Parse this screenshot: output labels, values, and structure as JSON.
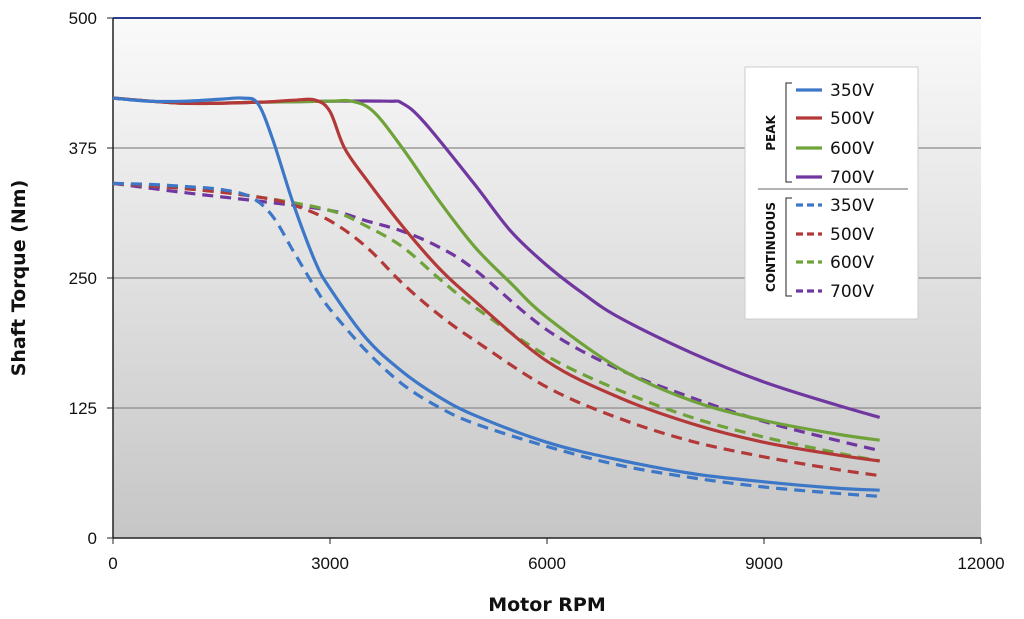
{
  "chart_data": {
    "type": "line",
    "title": "",
    "xlabel": "Motor RPM",
    "ylabel": "Shaft Torque (Nm)",
    "xlim": [
      0,
      12000
    ],
    "ylim": [
      0,
      500
    ],
    "x_ticks": [
      0,
      3000,
      6000,
      9000,
      12000
    ],
    "y_ticks": [
      0,
      125,
      250,
      375,
      500
    ],
    "grid": "horizontal",
    "legend_position": "top-right",
    "legend_groups": [
      "PEAK",
      "CONTINUOUS"
    ],
    "series": [
      {
        "name": "350V",
        "group": "PEAK",
        "color": "#3d77c8",
        "dash": "solid",
        "points": [
          [
            0,
            423
          ],
          [
            500,
            420
          ],
          [
            1000,
            420
          ],
          [
            1500,
            422
          ],
          [
            1800,
            423
          ],
          [
            2000,
            418
          ],
          [
            2200,
            385
          ],
          [
            2500,
            320
          ],
          [
            2800,
            265
          ],
          [
            3000,
            240
          ],
          [
            3500,
            192
          ],
          [
            4000,
            160
          ],
          [
            4500,
            136
          ],
          [
            5000,
            118
          ],
          [
            6000,
            92
          ],
          [
            7000,
            75
          ],
          [
            8000,
            62
          ],
          [
            9000,
            54
          ],
          [
            10000,
            48
          ],
          [
            10600,
            46
          ]
        ]
      },
      {
        "name": "500V",
        "group": "PEAK",
        "color": "#b33838",
        "dash": "solid",
        "points": [
          [
            0,
            423
          ],
          [
            1000,
            418
          ],
          [
            2000,
            419
          ],
          [
            2500,
            421
          ],
          [
            2800,
            421
          ],
          [
            3000,
            410
          ],
          [
            3200,
            375
          ],
          [
            3500,
            345
          ],
          [
            4000,
            300
          ],
          [
            4500,
            260
          ],
          [
            5000,
            228
          ],
          [
            6000,
            170
          ],
          [
            7000,
            135
          ],
          [
            8000,
            110
          ],
          [
            9000,
            92
          ],
          [
            10000,
            80
          ],
          [
            10600,
            74
          ]
        ]
      },
      {
        "name": "600V",
        "group": "PEAK",
        "color": "#6fa33a",
        "dash": "solid",
        "points": [
          [
            0,
            423
          ],
          [
            1000,
            418
          ],
          [
            2000,
            419
          ],
          [
            3000,
            420
          ],
          [
            3300,
            420
          ],
          [
            3600,
            410
          ],
          [
            4000,
            375
          ],
          [
            4500,
            325
          ],
          [
            5000,
            280
          ],
          [
            5500,
            245
          ],
          [
            6000,
            212
          ],
          [
            7000,
            163
          ],
          [
            8000,
            132
          ],
          [
            9000,
            113
          ],
          [
            10000,
            100
          ],
          [
            10600,
            94
          ]
        ]
      },
      {
        "name": "700V",
        "group": "PEAK",
        "color": "#7137a0",
        "dash": "solid",
        "points": [
          [
            0,
            423
          ],
          [
            1000,
            418
          ],
          [
            2000,
            419
          ],
          [
            3000,
            420
          ],
          [
            3800,
            420
          ],
          [
            4000,
            418
          ],
          [
            4300,
            400
          ],
          [
            5000,
            340
          ],
          [
            5500,
            295
          ],
          [
            6000,
            262
          ],
          [
            6500,
            235
          ],
          [
            7000,
            212
          ],
          [
            8000,
            178
          ],
          [
            9000,
            150
          ],
          [
            10000,
            128
          ],
          [
            10600,
            116
          ]
        ]
      },
      {
        "name": "350V",
        "group": "CONTINUOUS",
        "color": "#3d77c8",
        "dash": "dashed",
        "points": [
          [
            0,
            341
          ],
          [
            500,
            340
          ],
          [
            1000,
            338
          ],
          [
            1500,
            335
          ],
          [
            1900,
            328
          ],
          [
            2200,
            310
          ],
          [
            2500,
            275
          ],
          [
            2800,
            240
          ],
          [
            3000,
            220
          ],
          [
            3500,
            180
          ],
          [
            4000,
            148
          ],
          [
            4500,
            126
          ],
          [
            5000,
            110
          ],
          [
            6000,
            88
          ],
          [
            7000,
            70
          ],
          [
            8000,
            58
          ],
          [
            9000,
            49
          ],
          [
            10000,
            43
          ],
          [
            10600,
            40
          ]
        ]
      },
      {
        "name": "500V",
        "group": "CONTINUOUS",
        "color": "#b33838",
        "dash": "dashed",
        "points": [
          [
            0,
            341
          ],
          [
            1000,
            336
          ],
          [
            2000,
            328
          ],
          [
            2500,
            320
          ],
          [
            3000,
            305
          ],
          [
            3500,
            280
          ],
          [
            4000,
            245
          ],
          [
            4500,
            215
          ],
          [
            5000,
            190
          ],
          [
            6000,
            145
          ],
          [
            7000,
            115
          ],
          [
            8000,
            93
          ],
          [
            9000,
            78
          ],
          [
            10000,
            66
          ],
          [
            10600,
            60
          ]
        ]
      },
      {
        "name": "600V",
        "group": "CONTINUOUS",
        "color": "#6fa33a",
        "dash": "dashed",
        "points": [
          [
            0,
            341
          ],
          [
            1000,
            336
          ],
          [
            2000,
            328
          ],
          [
            3000,
            315
          ],
          [
            3500,
            300
          ],
          [
            4000,
            280
          ],
          [
            4500,
            250
          ],
          [
            5000,
            222
          ],
          [
            6000,
            175
          ],
          [
            7000,
            142
          ],
          [
            8000,
            116
          ],
          [
            9000,
            97
          ],
          [
            10000,
            82
          ],
          [
            10600,
            74
          ]
        ]
      },
      {
        "name": "700V",
        "group": "CONTINUOUS",
        "color": "#7137a0",
        "dash": "dashed",
        "points": [
          [
            0,
            341
          ],
          [
            1000,
            332
          ],
          [
            2000,
            324
          ],
          [
            3000,
            315
          ],
          [
            3500,
            305
          ],
          [
            4000,
            295
          ],
          [
            4500,
            280
          ],
          [
            5000,
            258
          ],
          [
            6000,
            200
          ],
          [
            7000,
            162
          ],
          [
            8000,
            135
          ],
          [
            9000,
            112
          ],
          [
            10000,
            94
          ],
          [
            10600,
            84
          ]
        ]
      }
    ]
  }
}
